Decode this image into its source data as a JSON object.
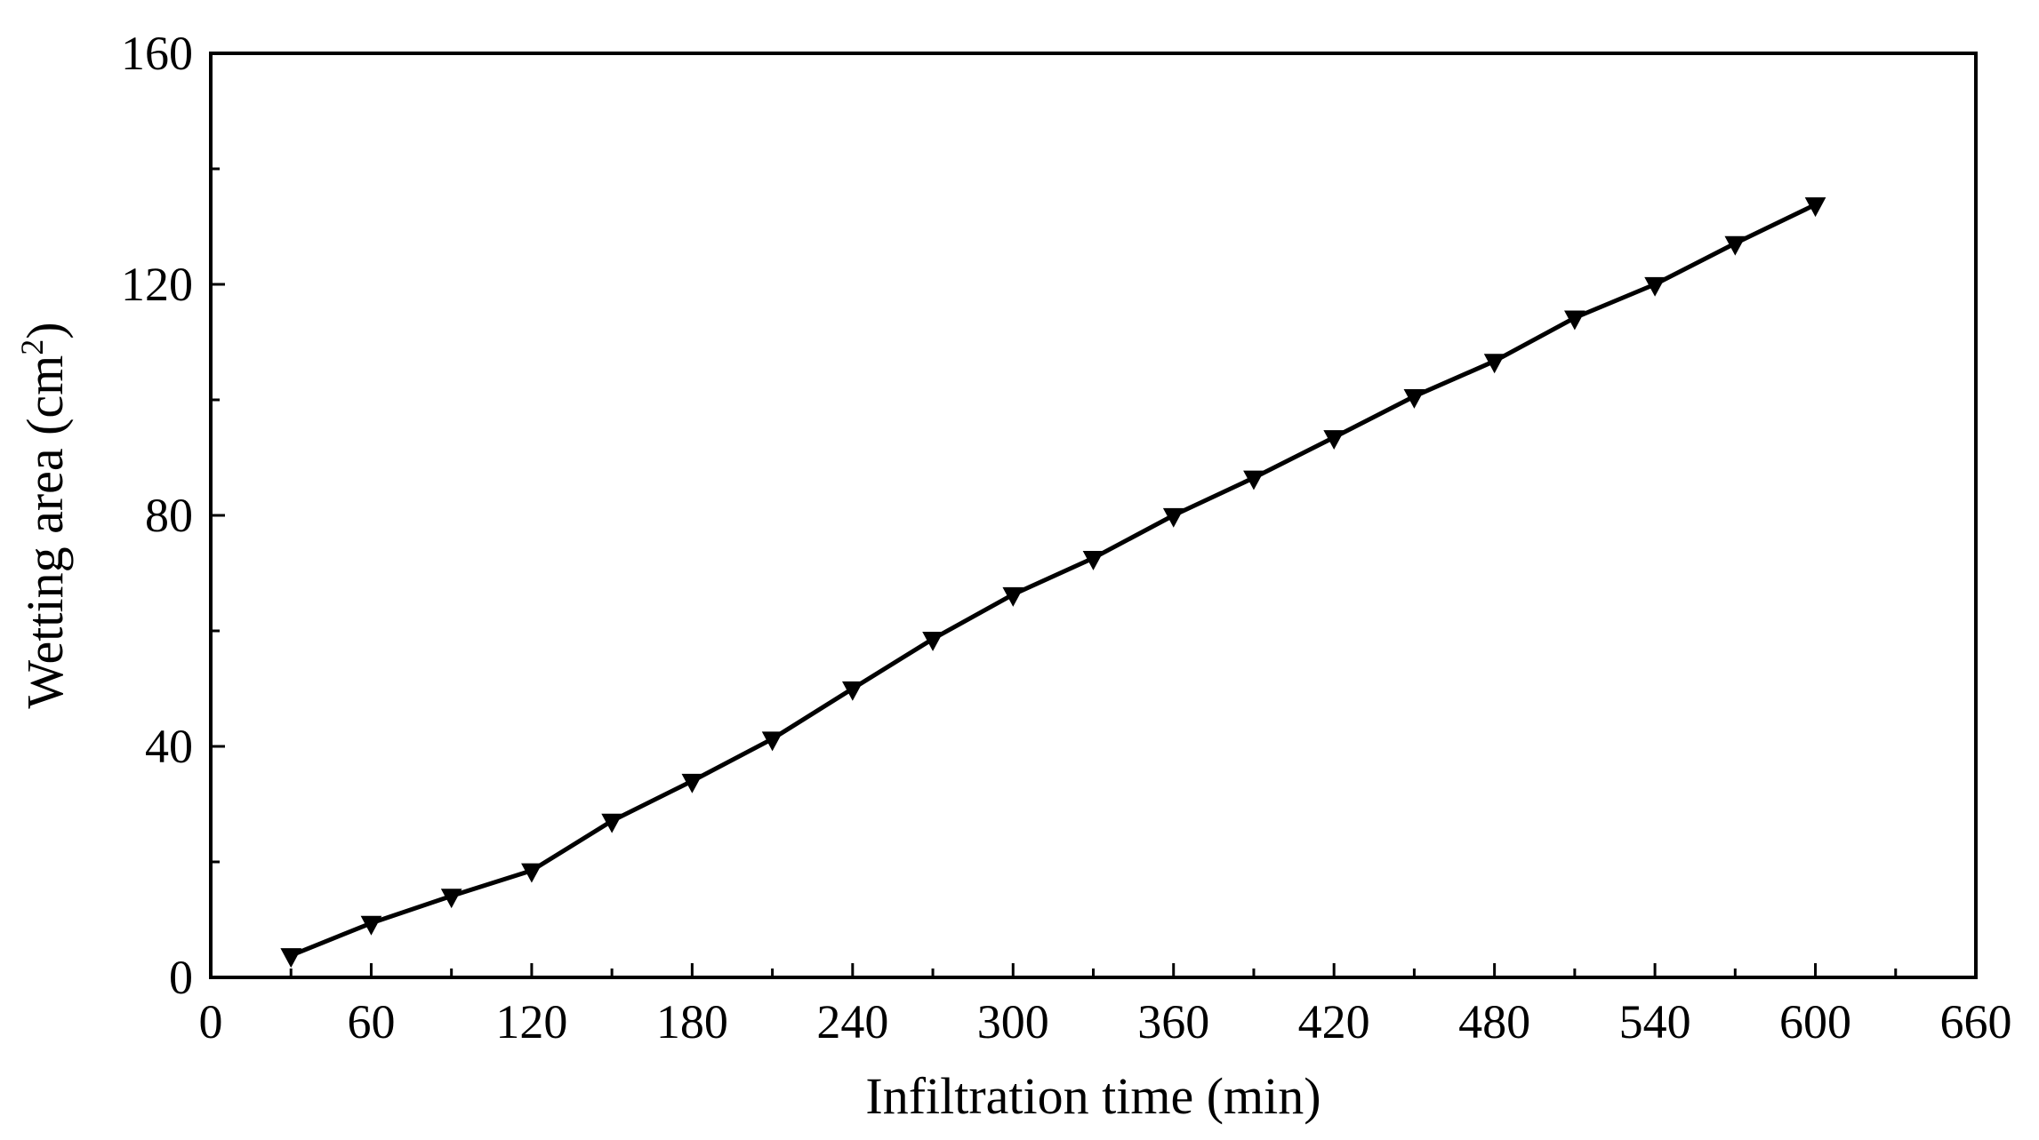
{
  "chart_data": {
    "type": "line",
    "title": "",
    "xlabel": "Infiltration time (min)",
    "ylabel": {
      "prefix": "Wetting area (cm",
      "superscript": "2",
      "suffix": ")"
    },
    "xlim": [
      0,
      660
    ],
    "ylim": [
      0,
      160
    ],
    "xticks": [
      0,
      60,
      120,
      180,
      240,
      300,
      360,
      420,
      480,
      540,
      600,
      660
    ],
    "yticks": [
      0,
      40,
      80,
      120,
      160
    ],
    "xtick_labels": [
      "0",
      "60",
      "120",
      "180",
      "240",
      "300",
      "360",
      "420",
      "480",
      "540",
      "600",
      "660"
    ],
    "ytick_labels": [
      "0",
      "40",
      "80",
      "120",
      "160"
    ],
    "grid": false,
    "legend": "none",
    "series": [
      {
        "marker": "down-triangle",
        "color": "#000000",
        "x": [
          30,
          60,
          90,
          120,
          150,
          180,
          210,
          240,
          270,
          300,
          330,
          360,
          390,
          420,
          450,
          480,
          510,
          540,
          570,
          600
        ],
        "y": [
          3.8,
          9.4,
          14.1,
          18.5,
          27.1,
          34.0,
          41.3,
          50.0,
          58.6,
          66.3,
          72.6,
          80.0,
          86.5,
          93.5,
          100.6,
          106.7,
          114.2,
          120.0,
          127.1,
          133.8
        ]
      }
    ]
  }
}
